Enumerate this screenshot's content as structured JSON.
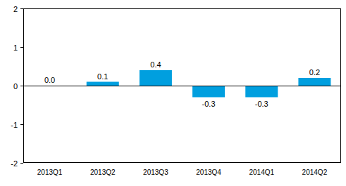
{
  "chart_data": {
    "type": "bar",
    "categories": [
      "2013Q1",
      "2013Q2",
      "2013Q3",
      "2013Q4",
      "2014Q1",
      "2014Q2"
    ],
    "values": [
      0.0,
      0.1,
      0.4,
      -0.3,
      -0.3,
      0.2
    ],
    "value_labels": [
      "0.0",
      "0.1",
      "0.4",
      "-0.3",
      "-0.3",
      "0.2"
    ],
    "color": "#009fdf",
    "ylim": [
      -2,
      2
    ],
    "yticks": [
      -2,
      -1,
      0,
      1,
      2
    ],
    "grid": false,
    "data_labels": true
  }
}
